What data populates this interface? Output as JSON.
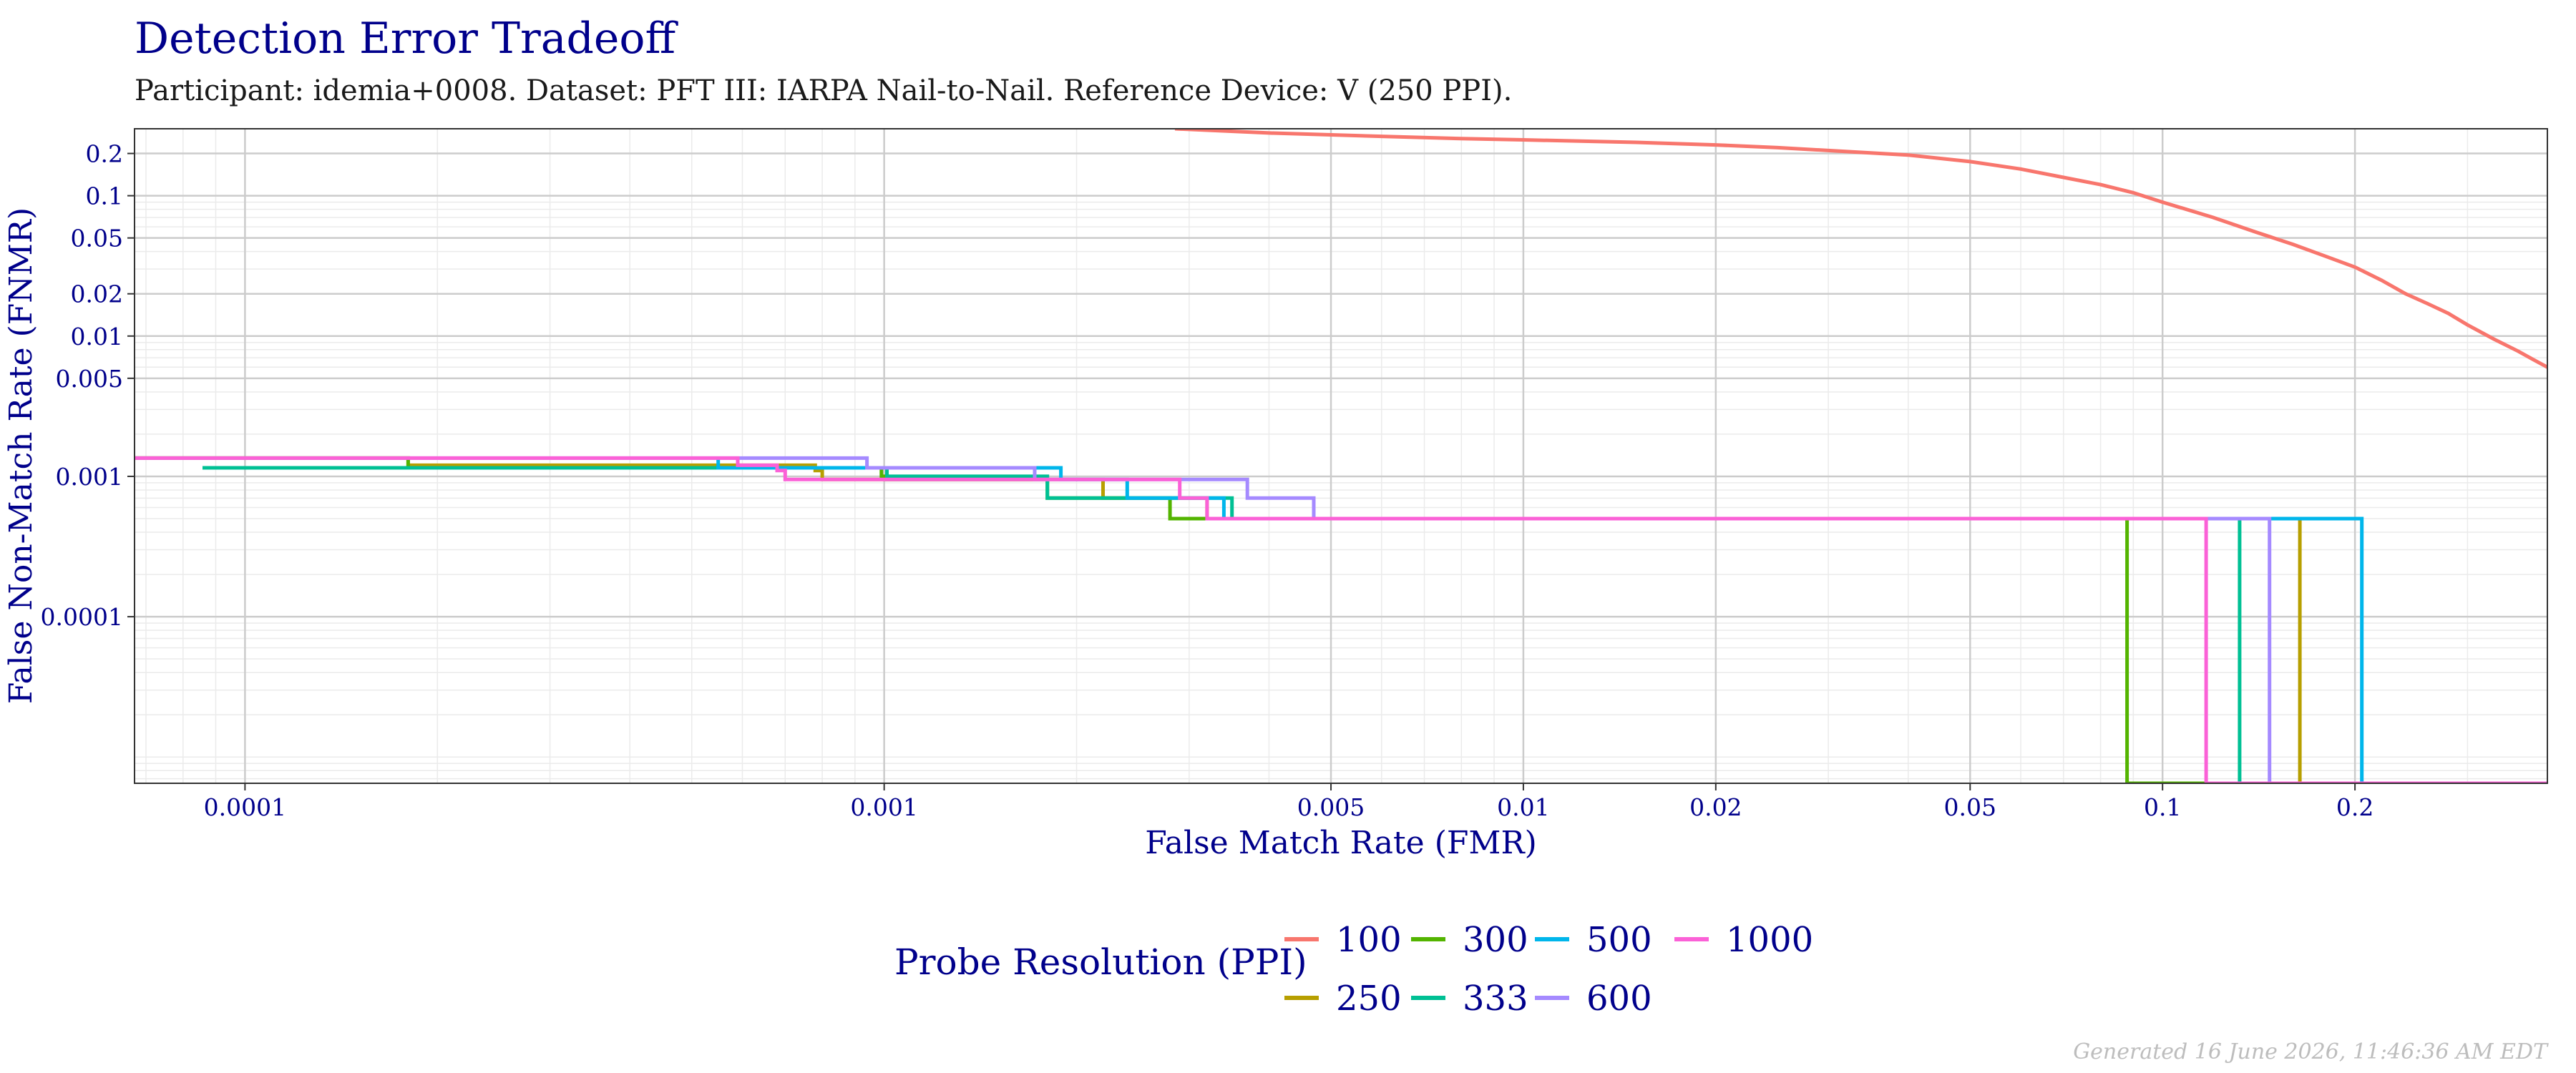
{
  "chart_data": {
    "type": "line",
    "title": "Detection Error Tradeoff",
    "subtitle": "Participant: idemia+0008. Dataset: PFT III: IARPA Nail-to-Nail. Reference Device: V (250 PPI).",
    "xlabel": "False Match Rate (FMR)",
    "ylabel": "False Non-Match Rate (FNMR)",
    "x_scale": "log",
    "y_scale": "log",
    "xlim": [
      6.717e-05,
      0.4
    ],
    "ylim": [
      6.5e-06,
      0.3
    ],
    "x_ticks": [
      {
        "value": 0.0001,
        "label": "0.0001"
      },
      {
        "value": 0.001,
        "label": "0.001"
      },
      {
        "value": 0.005,
        "label": "0.005"
      },
      {
        "value": 0.01,
        "label": "0.01"
      },
      {
        "value": 0.02,
        "label": "0.02"
      },
      {
        "value": 0.05,
        "label": "0.05"
      },
      {
        "value": 0.1,
        "label": "0.1"
      },
      {
        "value": 0.2,
        "label": "0.2"
      }
    ],
    "y_ticks": [
      {
        "value": 0.0001,
        "label": "0.0001"
      },
      {
        "value": 0.001,
        "label": "0.001"
      },
      {
        "value": 0.005,
        "label": "0.005"
      },
      {
        "value": 0.01,
        "label": "0.01"
      },
      {
        "value": 0.02,
        "label": "0.02"
      },
      {
        "value": 0.05,
        "label": "0.05"
      },
      {
        "value": 0.1,
        "label": "0.1"
      },
      {
        "value": 0.2,
        "label": "0.2"
      }
    ],
    "grid": true,
    "legend": {
      "title": "Probe Resolution (PPI)",
      "position": "bottom"
    },
    "series": [
      {
        "name": "100",
        "color": "#F8766D",
        "x": [
          0.00285,
          0.004,
          0.006,
          0.008,
          0.01,
          0.015,
          0.02,
          0.025,
          0.03,
          0.04,
          0.05,
          0.06,
          0.07,
          0.08,
          0.09,
          0.1,
          0.12,
          0.14,
          0.16,
          0.18,
          0.2,
          0.22,
          0.24,
          0.26,
          0.28,
          0.3,
          0.33,
          0.36,
          0.38,
          0.4
        ],
        "y": [
          0.3,
          0.28,
          0.265,
          0.255,
          0.25,
          0.24,
          0.23,
          0.22,
          0.21,
          0.195,
          0.175,
          0.155,
          0.135,
          0.12,
          0.105,
          0.09,
          0.07,
          0.055,
          0.045,
          0.037,
          0.031,
          0.025,
          0.02,
          0.017,
          0.0145,
          0.012,
          0.0095,
          0.0078,
          0.0068,
          0.006
        ]
      },
      {
        "name": "250",
        "color": "#B79F00",
        "x": [
          6.717e-05,
          0.00018,
          0.00018,
          0.00078,
          0.00078,
          0.0008,
          0.0008,
          0.0022,
          0.0022,
          0.0032,
          0.0032,
          0.164,
          0.164,
          0.4
        ],
        "y": [
          0.00135,
          0.00135,
          0.0012,
          0.0012,
          0.0011,
          0.0011,
          0.00095,
          0.00095,
          0.0007,
          0.0007,
          0.0005,
          0.0005,
          6.5e-06,
          6.5e-06
        ]
      },
      {
        "name": "300",
        "color": "#53B400",
        "x": [
          6.717e-05,
          0.00018,
          0.00018,
          0.00099,
          0.00099,
          0.00101,
          0.00101,
          0.0018,
          0.0018,
          0.0028,
          0.0028,
          0.0029,
          0.0029,
          0.088,
          0.088,
          0.4
        ],
        "y": [
          0.00135,
          0.00135,
          0.00115,
          0.00115,
          0.001,
          0.001,
          0.00095,
          0.00095,
          0.0007,
          0.0007,
          0.0005,
          0.0005,
          0.0005,
          0.0005,
          6.5e-06,
          6.5e-06
        ]
      },
      {
        "name": "333",
        "color": "#00C094",
        "x": [
          8.58e-05,
          0.00055,
          0.00055,
          0.00101,
          0.00101,
          0.0018,
          0.0018,
          0.0028,
          0.0028,
          0.0035,
          0.0035,
          0.0036,
          0.0036,
          0.132,
          0.132,
          0.4
        ],
        "y": [
          0.00115,
          0.00115,
          0.00115,
          0.00115,
          0.001,
          0.001,
          0.0007,
          0.0007,
          0.0007,
          0.0007,
          0.0005,
          0.0005,
          0.0005,
          0.0005,
          6.5e-06,
          6.5e-06
        ]
      },
      {
        "name": "500",
        "color": "#00B6EB",
        "x": [
          0.00055,
          0.00055,
          0.00189,
          0.00189,
          0.0024,
          0.0024,
          0.0034,
          0.0034,
          0.205,
          0.205,
          0.4
        ],
        "y": [
          0.00135,
          0.00115,
          0.00115,
          0.00095,
          0.00095,
          0.0007,
          0.0007,
          0.0005,
          0.0005,
          6.5e-06,
          6.5e-06
        ]
      },
      {
        "name": "600",
        "color": "#A58AFF",
        "x": [
          6.717e-05,
          0.00094,
          0.00094,
          0.00172,
          0.00172,
          0.0037,
          0.0037,
          0.0047,
          0.0047,
          0.147,
          0.147,
          0.4
        ],
        "y": [
          0.00135,
          0.00135,
          0.00115,
          0.00115,
          0.00095,
          0.00095,
          0.0007,
          0.0007,
          0.0005,
          0.0005,
          6.5e-06,
          6.5e-06
        ]
      },
      {
        "name": "1000",
        "color": "#FB61D7",
        "x": [
          6.717e-05,
          0.00059,
          0.00059,
          0.00068,
          0.00068,
          0.0007,
          0.0007,
          0.0029,
          0.0029,
          0.0032,
          0.0032,
          0.117,
          0.117,
          0.4
        ],
        "y": [
          0.00135,
          0.00135,
          0.0012,
          0.0012,
          0.0011,
          0.0011,
          0.00095,
          0.00095,
          0.0007,
          0.0007,
          0.0005,
          0.0005,
          6.5e-06,
          6.5e-06
        ]
      }
    ]
  },
  "footer": "Generated 16 June 2026, 11:46:36 AM EDT"
}
